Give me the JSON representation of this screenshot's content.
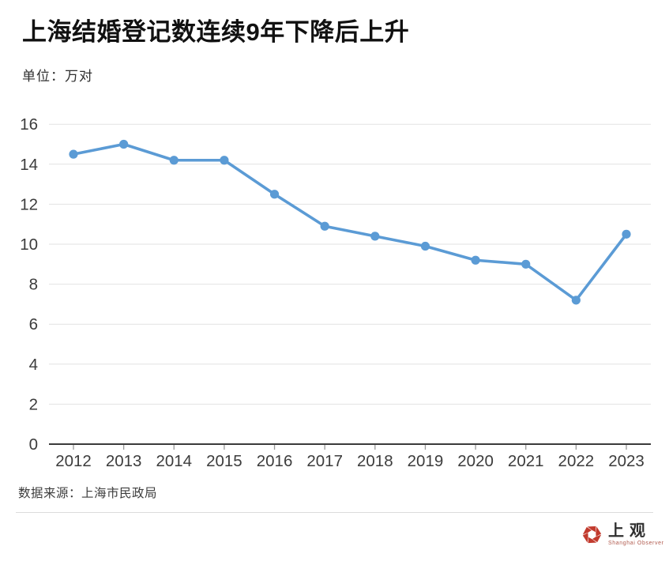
{
  "header": {
    "title": "上海结婚登记数连续9年下降后上升",
    "unit_label": "单位：万对"
  },
  "chart_data": {
    "type": "line",
    "title": "上海结婚登记数连续9年下降后上升",
    "categories": [
      "2012",
      "2013",
      "2014",
      "2015",
      "2016",
      "2017",
      "2018",
      "2019",
      "2020",
      "2021",
      "2022",
      "2023"
    ],
    "values": [
      14.5,
      15.0,
      14.2,
      14.2,
      12.5,
      10.9,
      10.4,
      9.9,
      9.2,
      9.0,
      7.2,
      10.5
    ],
    "xlabel": "",
    "ylabel": "万对",
    "ylim": [
      0,
      16
    ],
    "ytick_step": 2,
    "grid": true,
    "legend": "none",
    "colors": {
      "line": "#5B9BD5",
      "marker": "#5B9BD5",
      "gridline": "#e2e2e2",
      "axis": "#3a3a3a",
      "tick": "#999999",
      "tick_label": "#3c3c3c"
    }
  },
  "footer": {
    "source": "数据来源：上海市民政局"
  },
  "logo": {
    "name": "上观",
    "subtitle": "Shanghai Observer",
    "brand_color": "#C23B2E"
  }
}
